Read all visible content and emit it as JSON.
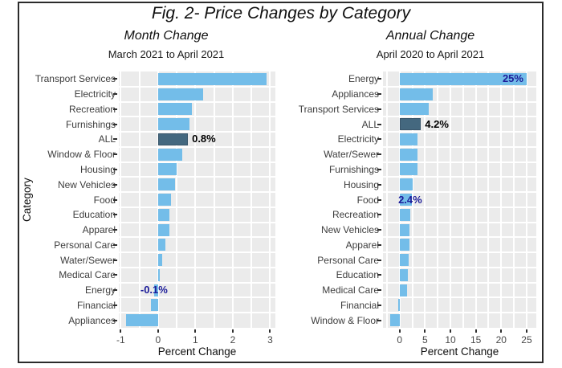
{
  "figure": {
    "title": "Fig. 2- Price Changes by Category",
    "y_axis_title": "Category",
    "colors": {
      "panel_background": "#ebebeb",
      "gridline": "#ffffff",
      "frame_border": "#2b2b2b",
      "bar_light_blue": "#73bde9",
      "bar_dark_highlight": "#44687f",
      "annotation_navy": "#1c1c99",
      "annotation_black": "#000000"
    }
  },
  "chart_data": [
    {
      "type": "bar",
      "orientation": "horizontal",
      "title": "Month Change",
      "subtitle": "March 2021 to April 2021",
      "xlabel": "Percent Change",
      "ylabel": "Category",
      "xlim": [
        -1.05,
        3.14
      ],
      "xticks": [
        -1,
        0,
        1,
        2,
        3
      ],
      "minor_tick_step": 0.5,
      "grid": true,
      "categories": [
        "Transport Services",
        "Electricity",
        "Recreation",
        "Furnishings",
        "ALL",
        "Window & Floor",
        "Housing",
        "New Vehicles",
        "Food",
        "Education",
        "Apparel",
        "Personal Care",
        "Water/Sewer",
        "Medical Care",
        "Energy",
        "Financial",
        "Appliances"
      ],
      "values": [
        2.9,
        1.2,
        0.9,
        0.85,
        0.8,
        0.65,
        0.5,
        0.45,
        0.35,
        0.3,
        0.3,
        0.2,
        0.1,
        0.05,
        -0.1,
        -0.2,
        -0.85
      ],
      "highlight_category": "ALL",
      "bar_color": "#73bde9",
      "highlight_color": "#44687f",
      "annotations": [
        {
          "category": "ALL",
          "text": "0.8%",
          "color": "#000000",
          "placement": "after"
        },
        {
          "category": "Energy",
          "text": "-0.1%",
          "color": "#1c1c99",
          "placement": "over-zero"
        }
      ]
    },
    {
      "type": "bar",
      "orientation": "horizontal",
      "title": "Annual Change",
      "subtitle": "April 2020 to April 2021",
      "xlabel": "Percent Change",
      "ylabel": "",
      "xlim": [
        -3.27,
        26.9
      ],
      "xticks": [
        0,
        5,
        10,
        15,
        20,
        25
      ],
      "minor_tick_step": 2.5,
      "grid": true,
      "categories": [
        "Energy",
        "Appliances",
        "Transport Services",
        "ALL",
        "Electricity",
        "Water/Sewer",
        "Furnishings",
        "Housing",
        "Food",
        "Recreation",
        "New Vehicles",
        "Apparel",
        "Personal Care",
        "Education",
        "Medical Care",
        "Financial",
        "Window & Floor"
      ],
      "values": [
        25,
        6.5,
        5.8,
        4.2,
        3.6,
        3.6,
        3.5,
        2.6,
        2.4,
        2.1,
        2.0,
        2.0,
        1.8,
        1.7,
        1.4,
        -0.2,
        -1.9
      ],
      "highlight_category": "ALL",
      "bar_color": "#73bde9",
      "highlight_color": "#44687f",
      "annotations": [
        {
          "category": "Energy",
          "text": "25%",
          "color": "#1c1c99",
          "placement": "inside-end"
        },
        {
          "category": "ALL",
          "text": "4.2%",
          "color": "#000000",
          "placement": "after"
        },
        {
          "category": "Food",
          "text": "2.4%",
          "color": "#1c1c99",
          "placement": "over-end"
        }
      ]
    }
  ]
}
